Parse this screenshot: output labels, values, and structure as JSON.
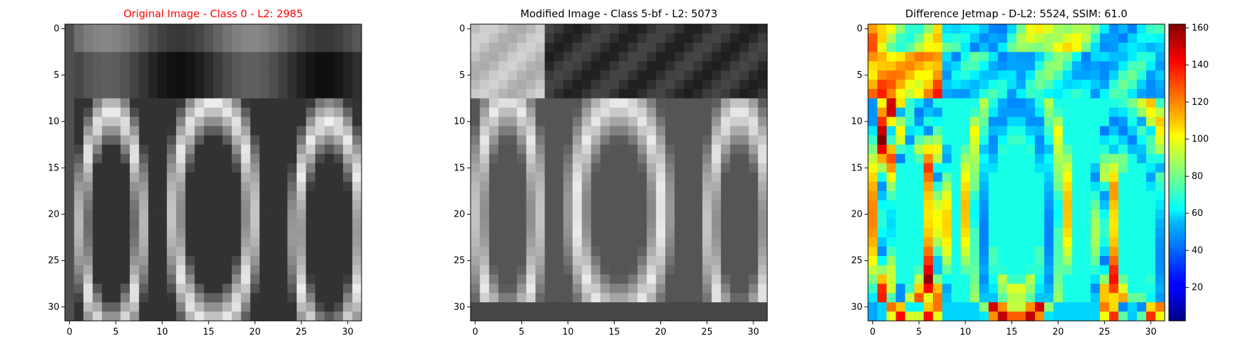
{
  "chart_data": [
    {
      "type": "heatmap",
      "title": "Original Image - Class 0 - L2: 2985",
      "title_color": "#ff0000",
      "colormap": "gray",
      "xlim": [
        0,
        31
      ],
      "ylim": [
        0,
        31
      ],
      "x_ticks": [
        "0",
        "5",
        "10",
        "15",
        "20",
        "25",
        "30"
      ],
      "y_ticks": [
        "0",
        "5",
        "10",
        "15",
        "20",
        "25",
        "30"
      ]
    },
    {
      "type": "heatmap",
      "title": "Modified Image - Class 5-bf - L2: 5073",
      "title_color": "#000000",
      "colormap": "gray",
      "xlim": [
        0,
        31
      ],
      "ylim": [
        0,
        31
      ],
      "x_ticks": [
        "0",
        "5",
        "10",
        "15",
        "20",
        "25",
        "30"
      ],
      "y_ticks": [
        "0",
        "5",
        "10",
        "15",
        "20",
        "25",
        "30"
      ]
    },
    {
      "type": "heatmap",
      "title": "Difference Jetmap - D-L2: 5524, SSIM: 61.0",
      "title_color": "#000000",
      "colormap": "jet",
      "xlim": [
        0,
        31
      ],
      "ylim": [
        0,
        31
      ],
      "x_ticks": [
        "0",
        "5",
        "10",
        "15",
        "20",
        "25",
        "30"
      ],
      "y_ticks": [
        "0",
        "5",
        "10",
        "15",
        "20",
        "25",
        "30"
      ],
      "colorbar": {
        "range": [
          2,
          162
        ],
        "ticks": [
          "20",
          "40",
          "60",
          "80",
          "100",
          "120",
          "140",
          "160"
        ]
      }
    }
  ]
}
